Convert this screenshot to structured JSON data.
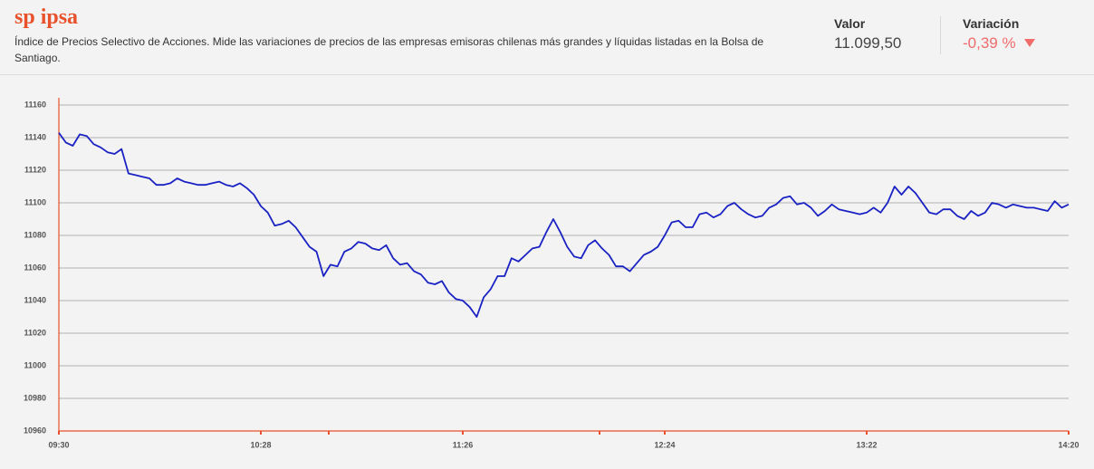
{
  "header": {
    "title": "sp ipsa",
    "description": "Índice de Precios Selectivo de Acciones. Mide las variaciones de precios de las empresas emisoras chilenas más grandes y líquidas listadas en la Bolsa de Santiago.",
    "stats": [
      {
        "label": "Valor",
        "value": "11.099,50"
      },
      {
        "label": "Variación",
        "value": "-0,39 %"
      }
    ]
  },
  "chart_data": {
    "type": "line",
    "categories": [
      "09:30",
      null,
      null,
      null,
      null,
      null,
      null,
      null,
      null,
      null,
      null,
      null,
      null,
      null,
      null,
      null,
      null,
      null,
      null,
      null,
      null,
      null,
      null,
      null,
      null,
      null,
      null,
      null,
      null,
      "10:28",
      null,
      null,
      null,
      null,
      null,
      null,
      null,
      null,
      null,
      null,
      null,
      null,
      null,
      null,
      null,
      null,
      null,
      null,
      null,
      null,
      null,
      null,
      null,
      null,
      null,
      null,
      null,
      null,
      "11:26",
      null,
      null,
      null,
      null,
      null,
      null,
      null,
      null,
      null,
      null,
      null,
      null,
      null,
      null,
      null,
      null,
      null,
      null,
      null,
      null,
      null,
      null,
      null,
      null,
      null,
      null,
      null,
      null,
      "12:24",
      null,
      null,
      null,
      null,
      null,
      null,
      null,
      null,
      null,
      null,
      null,
      null,
      null,
      null,
      null,
      null,
      null,
      null,
      null,
      null,
      null,
      null,
      null,
      null,
      null,
      null,
      null,
      null,
      "13:22",
      null,
      null,
      null,
      null,
      null,
      null,
      null,
      null,
      null,
      null,
      null,
      null,
      null,
      null,
      null,
      null,
      null,
      null,
      null,
      null,
      null,
      null,
      null,
      null,
      null,
      null,
      null,
      null,
      "14:20"
    ],
    "values": [
      11143,
      11137,
      11135,
      11142,
      11141,
      11136,
      11134,
      11131,
      11130,
      11133,
      11118,
      11117,
      11116,
      11115,
      11111,
      11111,
      11112,
      11115,
      11113,
      11112,
      11111,
      11111,
      11112,
      11113,
      11111,
      11110,
      11112,
      11109,
      11105,
      11098,
      11094,
      11086,
      11087,
      11089,
      11085,
      11079,
      11073,
      11070,
      11055,
      11062,
      11061,
      11070,
      11072,
      11076,
      11075,
      11072,
      11071,
      11074,
      11066,
      11062,
      11063,
      11058,
      11056,
      11051,
      11050,
      11052,
      11045,
      11041,
      11040,
      11036,
      11030,
      11042,
      11047,
      11055,
      11055,
      11066,
      11064,
      11068,
      11072,
      11073,
      11082,
      11090,
      11082,
      11073,
      11067,
      11066,
      11074,
      11077,
      11072,
      11068,
      11061,
      11061,
      11058,
      11063,
      11068,
      11070,
      11073,
      11080,
      11088,
      11089,
      11085,
      11085,
      11093,
      11094,
      11091,
      11093,
      11098,
      11100,
      11096,
      11093,
      11091,
      11092,
      11097,
      11099,
      11103,
      11104,
      11099,
      11100,
      11097,
      11092,
      11095,
      11099,
      11096,
      11095,
      11094,
      11093,
      11094,
      11097,
      11094,
      11100,
      11110,
      11105,
      11110,
      11106,
      11100,
      11094,
      11093,
      11096,
      11096,
      11092,
      11090,
      11095,
      11092,
      11094,
      11100,
      11099,
      11097,
      11099,
      11098,
      11097,
      11097,
      11096,
      11095,
      11101,
      11097,
      11099
    ],
    "color": "#1a22c4",
    "ylim": [
      10960,
      11160
    ],
    "yticks": [
      10960,
      10980,
      11000,
      11020,
      11040,
      11060,
      11080,
      11100,
      11120,
      11140,
      11160
    ],
    "grid": true
  }
}
